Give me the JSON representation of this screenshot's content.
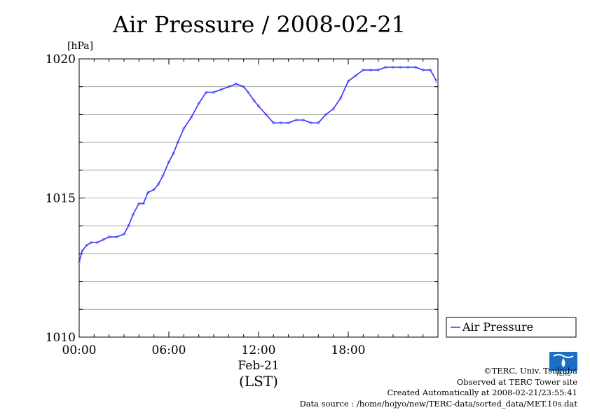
{
  "chart_data": {
    "type": "line",
    "title": "Air Pressure / 2008-02-21",
    "ylabel": "[hPa]",
    "ylim": [
      1010,
      1020
    ],
    "yticks": [
      1010,
      1015,
      1020
    ],
    "xlim_hours": [
      0,
      24
    ],
    "xticks": [
      {
        "hour": 0,
        "label": "00:00"
      },
      {
        "hour": 6,
        "label": "06:00"
      },
      {
        "hour": 12,
        "label": "12:00"
      },
      {
        "hour": 18,
        "label": "18:00"
      }
    ],
    "xlabel_date": "Feb-21",
    "xlabel_tz": "(LST)",
    "grid": true,
    "legend_position": "right",
    "series": [
      {
        "name": "Air Pressure",
        "color": "#3333ff",
        "x_hours": [
          0,
          0.2,
          0.5,
          0.8,
          1.2,
          1.6,
          2.0,
          2.5,
          3.0,
          3.3,
          3.6,
          4.0,
          4.3,
          4.6,
          5.0,
          5.3,
          5.6,
          6.0,
          6.3,
          6.6,
          7.0,
          7.5,
          8.0,
          8.5,
          9.0,
          9.5,
          10.0,
          10.5,
          11.0,
          11.3,
          11.7,
          12.0,
          12.5,
          13.0,
          13.5,
          14.0,
          14.5,
          15.0,
          15.5,
          16.0,
          16.5,
          17.0,
          17.5,
          18.0,
          18.5,
          19.0,
          19.5,
          20.0,
          20.5,
          21.0,
          21.5,
          22.0,
          22.5,
          23.0,
          23.5,
          23.9
        ],
        "values": [
          1012.7,
          1013.1,
          1013.3,
          1013.4,
          1013.4,
          1013.5,
          1013.6,
          1013.6,
          1013.7,
          1014.0,
          1014.4,
          1014.8,
          1014.8,
          1015.2,
          1015.3,
          1015.5,
          1015.8,
          1016.3,
          1016.6,
          1017.0,
          1017.5,
          1017.9,
          1018.4,
          1018.8,
          1018.8,
          1018.9,
          1019.0,
          1019.1,
          1019.0,
          1018.8,
          1018.5,
          1018.3,
          1018.0,
          1017.7,
          1017.7,
          1017.7,
          1017.8,
          1017.8,
          1017.7,
          1017.7,
          1018.0,
          1018.2,
          1018.6,
          1019.2,
          1019.4,
          1019.6,
          1019.6,
          1019.6,
          1019.7,
          1019.7,
          1019.7,
          1019.7,
          1019.7,
          1019.6,
          1019.6,
          1019.2
        ]
      }
    ]
  },
  "credits": {
    "copyright": "©TERC, Univ. Tsukuba",
    "site": "Observed at TERC Tower site",
    "created": "Created Automatically at 2008-02-21/23:55:41",
    "source": "Data source : /home/hojyo/new/TERC-data/sorted_data/MET.10s.dat"
  },
  "logo": {
    "text": "TERC",
    "color": "#1a6fc4"
  }
}
